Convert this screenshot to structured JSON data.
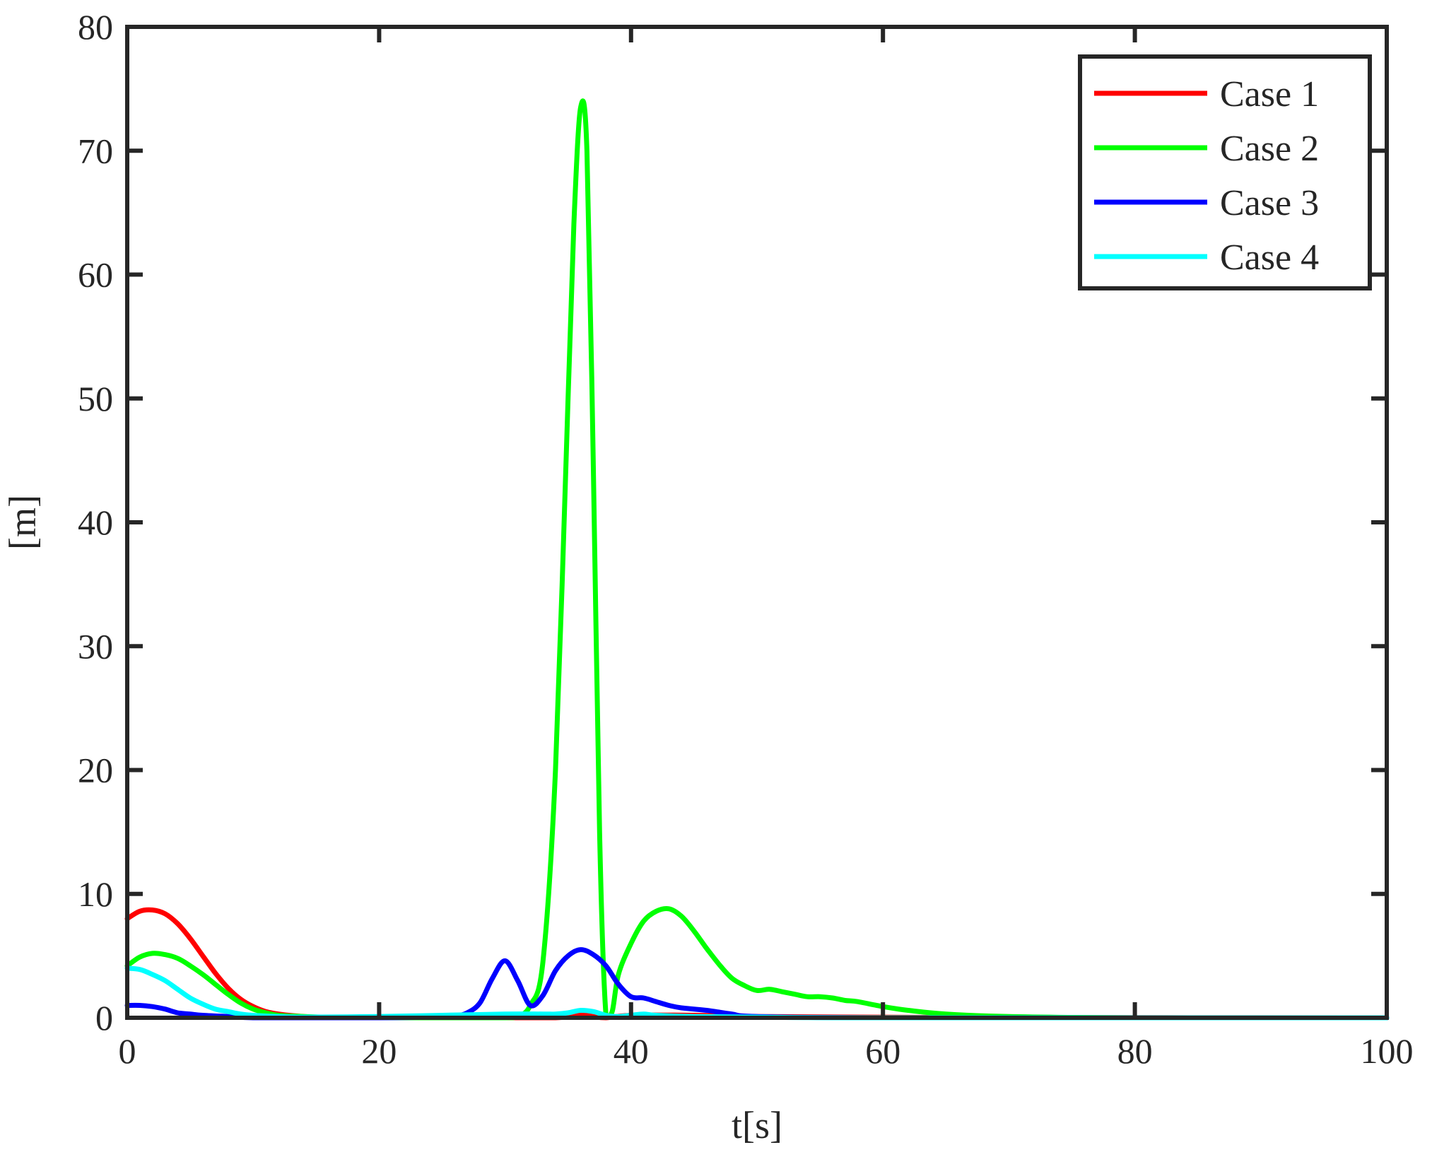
{
  "chart_data": {
    "type": "line",
    "title": "",
    "xlabel": "t[s]",
    "ylabel": "[m]",
    "xlim": [
      0,
      100
    ],
    "ylim": [
      0,
      80
    ],
    "xticks": [
      0,
      20,
      40,
      60,
      80,
      100
    ],
    "yticks": [
      0,
      10,
      20,
      30,
      40,
      50,
      60,
      70,
      80
    ],
    "grid": false,
    "legend": "top-right",
    "series": [
      {
        "name": "Case 1",
        "color": "#ff0000",
        "x": [
          0,
          1,
          2,
          3,
          4,
          5,
          6,
          7,
          8,
          9,
          10,
          11,
          12,
          14,
          16,
          20,
          30,
          34,
          35,
          36,
          37,
          38,
          40,
          45,
          50,
          60,
          70,
          100
        ],
        "y": [
          8.0,
          8.6,
          8.7,
          8.4,
          7.6,
          6.4,
          5.0,
          3.6,
          2.4,
          1.5,
          0.9,
          0.5,
          0.3,
          0.1,
          0.05,
          0.02,
          0.0,
          0.0,
          0.1,
          0.3,
          0.1,
          0.0,
          0.2,
          0.2,
          0.1,
          0.05,
          0.02,
          0.0
        ]
      },
      {
        "name": "Case 2",
        "color": "#00ff00",
        "x": [
          0,
          1,
          2,
          3,
          4,
          5,
          6,
          7,
          8,
          9,
          10,
          11,
          12,
          14,
          16,
          20,
          25,
          30,
          31,
          32,
          33,
          34,
          35,
          35.5,
          36,
          36.5,
          37,
          37.5,
          38,
          38.5,
          39,
          40,
          41,
          42,
          43,
          44,
          45,
          46,
          47,
          48,
          49,
          50,
          51,
          52,
          53,
          54,
          55,
          56,
          57,
          58,
          60,
          62,
          65,
          70,
          80,
          100
        ],
        "y": [
          4.2,
          4.9,
          5.2,
          5.1,
          4.8,
          4.2,
          3.5,
          2.7,
          1.9,
          1.2,
          0.7,
          0.4,
          0.2,
          0.1,
          0.05,
          0.0,
          0.0,
          0.0,
          0.1,
          1.0,
          4.5,
          20.0,
          50.0,
          65.0,
          73.5,
          70.0,
          45.0,
          15.0,
          0.3,
          0.5,
          3.5,
          6.0,
          7.8,
          8.6,
          8.8,
          8.2,
          7.0,
          5.6,
          4.3,
          3.2,
          2.6,
          2.2,
          2.3,
          2.1,
          1.9,
          1.7,
          1.7,
          1.6,
          1.4,
          1.3,
          0.9,
          0.6,
          0.3,
          0.1,
          0.0,
          0.0
        ]
      },
      {
        "name": "Case 3",
        "color": "#0000ff",
        "x": [
          0,
          1,
          2,
          3,
          4,
          5,
          6,
          8,
          10,
          14,
          20,
          25,
          26,
          27,
          28,
          29,
          30,
          31,
          32,
          33,
          34,
          35,
          36,
          37,
          38,
          39,
          40,
          41,
          42,
          43,
          44,
          46,
          48,
          50,
          60,
          100
        ],
        "y": [
          1.0,
          1.0,
          0.9,
          0.7,
          0.4,
          0.3,
          0.2,
          0.1,
          0.0,
          0.0,
          0.0,
          0.05,
          0.1,
          0.4,
          1.2,
          3.2,
          4.6,
          3.0,
          1.0,
          1.8,
          3.8,
          5.0,
          5.5,
          5.1,
          4.2,
          2.7,
          1.7,
          1.6,
          1.3,
          1.0,
          0.8,
          0.6,
          0.3,
          0.1,
          0.0,
          0.0
        ]
      },
      {
        "name": "Case 4",
        "color": "#00ffff",
        "x": [
          0,
          1,
          2,
          3,
          4,
          5,
          6,
          7,
          8,
          9,
          10,
          12,
          14,
          20,
          25,
          30,
          33,
          34,
          35,
          36,
          37,
          38,
          39,
          40,
          41,
          42,
          45,
          50,
          60,
          100
        ],
        "y": [
          4.0,
          3.9,
          3.5,
          3.0,
          2.3,
          1.6,
          1.1,
          0.7,
          0.5,
          0.3,
          0.2,
          0.1,
          0.05,
          0.1,
          0.2,
          0.3,
          0.3,
          0.3,
          0.4,
          0.6,
          0.5,
          0.2,
          0.1,
          0.2,
          0.3,
          0.2,
          0.1,
          0.05,
          0.0,
          0.0
        ]
      }
    ]
  }
}
